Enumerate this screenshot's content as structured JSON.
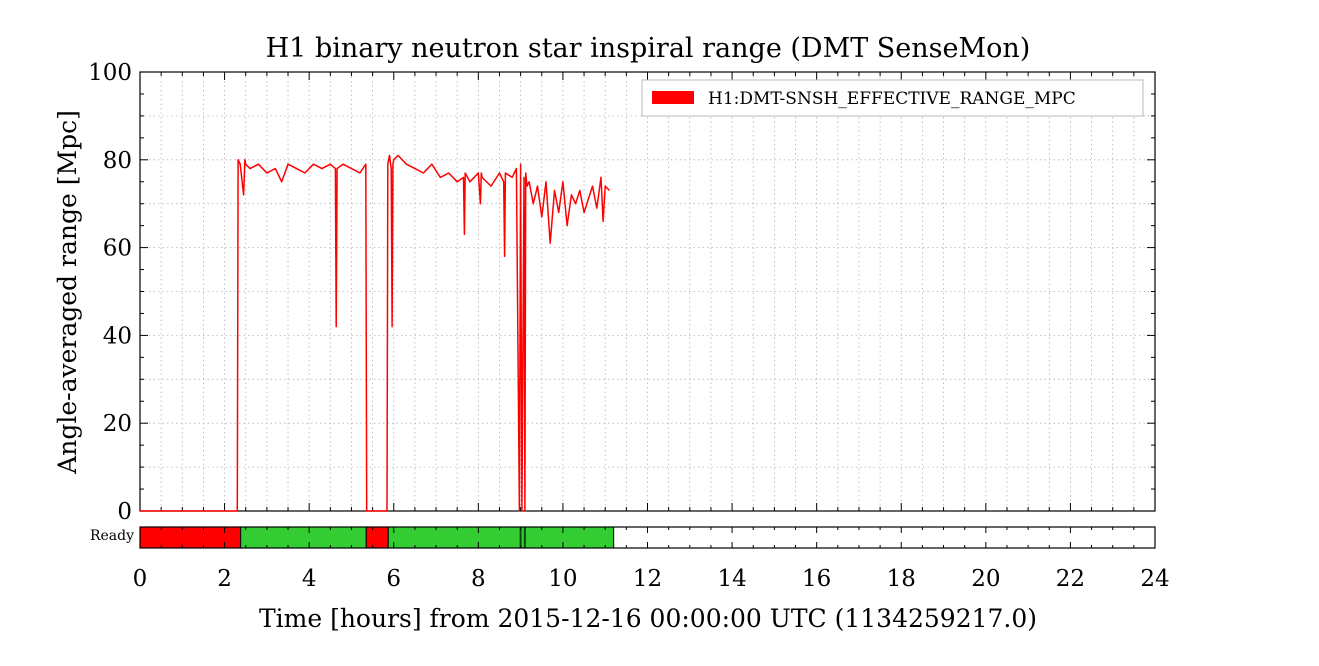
{
  "chart_data": {
    "type": "line",
    "title": "H1 binary neutron star inspiral range (DMT SenseMon)",
    "xlabel": "Time [hours] from 2015-12-16 00:00:00 UTC (1134259217.0)",
    "ylabel": "Angle-averaged range [Mpc]",
    "xlim": [
      0,
      24
    ],
    "ylim": [
      0,
      100
    ],
    "x_ticks": [
      0,
      2,
      4,
      6,
      8,
      10,
      12,
      14,
      16,
      18,
      20,
      22,
      24
    ],
    "y_ticks": [
      0,
      20,
      40,
      60,
      80,
      100
    ],
    "grid": true,
    "legend_position": "top-right",
    "series": [
      {
        "name": "H1:DMT-SNSH_EFFECTIVE_RANGE_MPC",
        "color": "#ff0000",
        "x": [
          0.0,
          2.3,
          2.32,
          2.37,
          2.45,
          2.48,
          2.5,
          2.6,
          2.8,
          3.0,
          3.2,
          3.35,
          3.5,
          3.7,
          3.9,
          4.1,
          4.3,
          4.5,
          4.62,
          4.64,
          4.66,
          4.8,
          5.0,
          5.2,
          5.34,
          5.36,
          5.84,
          5.86,
          5.9,
          5.94,
          5.96,
          5.98,
          6.0,
          6.1,
          6.3,
          6.5,
          6.7,
          6.9,
          7.1,
          7.3,
          7.5,
          7.65,
          7.67,
          7.69,
          7.8,
          8.0,
          8.05,
          8.07,
          8.09,
          8.3,
          8.5,
          8.6,
          8.62,
          8.64,
          8.8,
          8.9,
          8.97,
          9.0,
          9.03,
          9.08,
          9.1,
          9.12,
          9.15,
          9.2,
          9.3,
          9.4,
          9.5,
          9.6,
          9.7,
          9.8,
          9.9,
          10.0,
          10.1,
          10.2,
          10.3,
          10.4,
          10.5,
          10.6,
          10.7,
          10.8,
          10.9,
          10.95,
          11.0,
          11.1
        ],
        "y": [
          0,
          0,
          80,
          79,
          72,
          80,
          79,
          78,
          79,
          77,
          78,
          75,
          79,
          78,
          77,
          79,
          78,
          79,
          78,
          42,
          78,
          79,
          78,
          77,
          79,
          0,
          0,
          79,
          81,
          78,
          42,
          79,
          80,
          81,
          79,
          78,
          77,
          79,
          76,
          77,
          75,
          76,
          63,
          77,
          75,
          77,
          70,
          77,
          76,
          74,
          77,
          75,
          58,
          77,
          76,
          78,
          0,
          79,
          0,
          76,
          0,
          77,
          74,
          75,
          70,
          74,
          67,
          75,
          61,
          73,
          68,
          75,
          65,
          72,
          70,
          73,
          68,
          71,
          74,
          69,
          76,
          66,
          74,
          73
        ]
      }
    ],
    "state_bar": {
      "label": "Ready",
      "segments": [
        {
          "start": 0.0,
          "end": 2.38,
          "state": "off",
          "color": "#ff0000"
        },
        {
          "start": 2.38,
          "end": 5.35,
          "state": "on",
          "color": "#33cc33"
        },
        {
          "start": 5.35,
          "end": 5.87,
          "state": "off",
          "color": "#ff0000"
        },
        {
          "start": 5.87,
          "end": 11.2,
          "state": "on",
          "color": "#33cc33"
        }
      ],
      "dark_lines": [
        9.0,
        9.1
      ],
      "minor_tick_step": 0.5
    }
  }
}
